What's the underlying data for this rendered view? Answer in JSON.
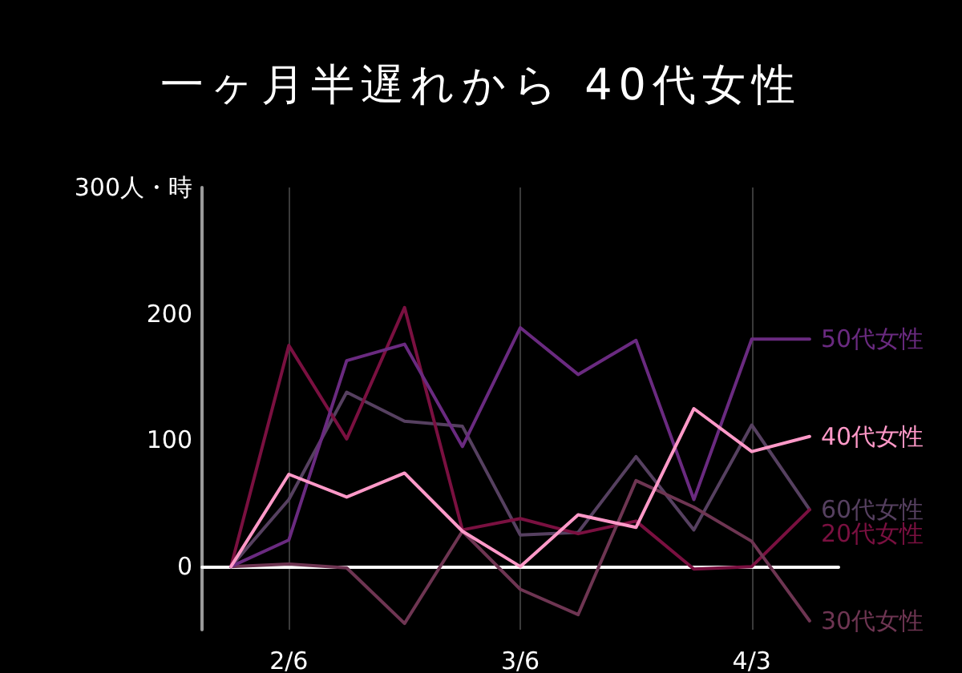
{
  "chart_data": {
    "type": "line",
    "title": "一ヶ月半遅れから 40代女性",
    "categories": [
      null,
      "2/6",
      null,
      null,
      null,
      "3/6",
      null,
      null,
      null,
      "4/3",
      null
    ],
    "series": [
      {
        "name": "60代女性",
        "color": "#564060",
        "values": [
          0,
          53,
          138,
          115,
          111,
          25,
          27,
          87,
          29,
          112,
          45
        ]
      },
      {
        "name": "20代女性",
        "color": "#7a1040",
        "values": [
          0,
          175,
          101,
          205,
          29,
          38,
          26,
          36,
          -2,
          0,
          45
        ]
      },
      {
        "name": "30代女性",
        "color": "#6e3552",
        "values": [
          0,
          2,
          -1,
          -45,
          28,
          -18,
          -38,
          68,
          47,
          20,
          -43
        ]
      },
      {
        "name": "50代女性",
        "color": "#6a2a80",
        "values": [
          0,
          21,
          163,
          176,
          95,
          189,
          152,
          179,
          53,
          180,
          180
        ]
      },
      {
        "name": "40代女性",
        "color": "#ff99c8",
        "values": [
          0,
          73,
          55,
          74,
          28,
          0,
          41,
          31,
          125,
          91,
          103
        ]
      }
    ],
    "ylim": [
      -50,
      300
    ],
    "yticks": [
      0,
      100,
      200,
      {
        "value": 300,
        "label": "300人・時"
      }
    ],
    "grid": "x",
    "marker": "none",
    "line_style": "solid"
  }
}
